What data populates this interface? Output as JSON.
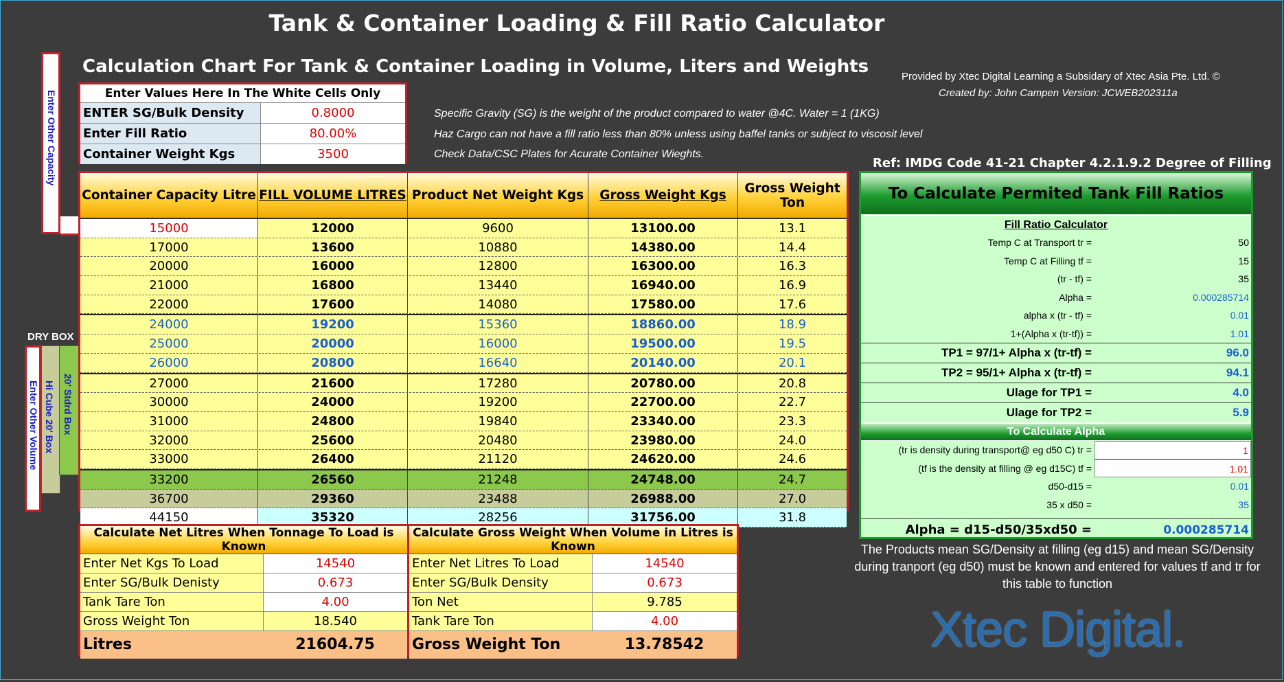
{
  "title": "Tank & Container Loading & Fill Ratio Calculator",
  "subtitle": "Calculation Chart For Tank & Container Loading in Volume, Liters and Weights",
  "provided_by": "Provided by Xtec Digital Learning a Subsidary of Xtec Asia Pte. Ltd. ©",
  "created_by": "Created by: John Campen  Version: JCWEB202311a",
  "notes": [
    "Specific Gravity (SG) is the weight of the product compared to water @4C. Water = 1 (1KG)",
    "Haz Cargo can not have a fill ratio less than 80% unless using baffel tanks or subject to viscosit level",
    "Check Data/CSC Plates for Acurate Container Wieghts."
  ],
  "ref": "Ref: IMDG Code 41-21 Chapter 4.2.1.9.2 Degree of Filling",
  "side_labels": {
    "other_capacity": "Enter Other Capacity",
    "dry_box": "DRY BOX",
    "other_volume": "Enter Other Volume",
    "hi_cube": "Hi Cube 20' Box",
    "stdrd": "20' Stdrd Box"
  },
  "inputs": {
    "header": "Enter Values Here In The White Cells Only",
    "rows": [
      {
        "label": "ENTER SG/Bulk Density",
        "value": "0.8000"
      },
      {
        "label": "Enter Fill Ratio",
        "value": "80.00%"
      },
      {
        "label": "Container Weight Kgs",
        "value": "3500"
      }
    ]
  },
  "main_table": {
    "headers": [
      "Container Capacity Litre",
      "FILL VOLUME LITRES",
      "Product Net Weight Kgs",
      "Gross Weight Kgs",
      "Gross Weight Ton"
    ],
    "rows": [
      [
        "15000",
        "12000",
        "9600",
        "13100.00",
        "13.1"
      ],
      [
        "17000",
        "13600",
        "10880",
        "14380.00",
        "14.4"
      ],
      [
        "20000",
        "16000",
        "12800",
        "16300.00",
        "16.3"
      ],
      [
        "21000",
        "16800",
        "13440",
        "16940.00",
        "16.9"
      ],
      [
        "22000",
        "17600",
        "14080",
        "17580.00",
        "17.6"
      ],
      [
        "24000",
        "19200",
        "15360",
        "18860.00",
        "18.9"
      ],
      [
        "25000",
        "20000",
        "16000",
        "19500.00",
        "19.5"
      ],
      [
        "26000",
        "20800",
        "16640",
        "20140.00",
        "20.1"
      ],
      [
        "27000",
        "21600",
        "17280",
        "20780.00",
        "20.8"
      ],
      [
        "30000",
        "24000",
        "19200",
        "22700.00",
        "22.7"
      ],
      [
        "31000",
        "24800",
        "19840",
        "23340.00",
        "23.3"
      ],
      [
        "32000",
        "25600",
        "20480",
        "23980.00",
        "24.0"
      ],
      [
        "33000",
        "26400",
        "21120",
        "24620.00",
        "24.6"
      ],
      [
        "33200",
        "26560",
        "21248",
        "24748.00",
        "24.7"
      ],
      [
        "36700",
        "29360",
        "23488",
        "26988.00",
        "27.0"
      ],
      [
        "44150",
        "35320",
        "28256",
        "31756.00",
        "31.8"
      ]
    ]
  },
  "net_litres": {
    "header": "Calculate Net Litres When Tonnage To Load is Known",
    "rows": [
      {
        "label": "Enter Net Kgs To Load",
        "value": "14540"
      },
      {
        "label": "Enter SG/Bulk Denisty",
        "value": "0.673"
      },
      {
        "label": "Tank Tare Ton",
        "value": "4.00"
      },
      {
        "label": "Gross Weight Ton",
        "value": "18.540"
      }
    ],
    "total_label": "Litres",
    "total_value": "21604.75"
  },
  "gross_weight": {
    "header": "Calculate Gross Weight When Volume in Litres is Known",
    "rows": [
      {
        "label": "Enter Net Litres To Load",
        "value": "14540"
      },
      {
        "label": "Enter SG/Bulk Density",
        "value": "0.673"
      },
      {
        "label": "Ton Net",
        "value": "9.785"
      },
      {
        "label": "Tank Tare Ton",
        "value": "4.00"
      }
    ],
    "total_label": "Gross Weight Ton",
    "total_value": "13.78542"
  },
  "fill_panel": {
    "header": "To Calculate Permited Tank Fill Ratios",
    "calc_title": "Fill Ratio Calculator",
    "rows": [
      {
        "label": "Temp C at Transport  tr =",
        "value": "50"
      },
      {
        "label": "Temp C at Filling  tf =",
        "value": "15"
      },
      {
        "label": "(tr - tf) =",
        "value": "35"
      },
      {
        "label": "Alpha =",
        "value": "0.000285714"
      },
      {
        "label": "alpha x (tr - tf) =",
        "value": "0.01"
      },
      {
        "label": "1+(Alpha x (tr-tf)) =",
        "value": "1.01"
      }
    ],
    "big_rows": [
      {
        "label": "TP1 =  97/1+ Alpha x (tr-tf) =",
        "value": "96.0"
      },
      {
        "label": "TP2 =  95/1+ Alpha x (tr-tf) =",
        "value": "94.1"
      },
      {
        "label": "Ulage for TP1 =",
        "value": "4.0"
      },
      {
        "label": "Ulage for TP2 =",
        "value": "5.9"
      }
    ],
    "alpha_header": "To Calculate Alpha",
    "alpha_rows": [
      {
        "label": "(tr is density during transport@ eg d50 C)  tr =",
        "value": "1"
      },
      {
        "label": "(tf is the density at filling @ eg d15C)  tf =",
        "value": "1.01"
      },
      {
        "label": "d50-d15 =",
        "value": "0.01"
      },
      {
        "label": "35 x d50 =",
        "value": "35"
      }
    ],
    "alpha_label": "Alpha  =  d15-d50/35xd50   =",
    "alpha_value": "0.000285714"
  },
  "description": "The Products mean SG/Density at filling (eg d15)  and mean SG/Density during tranport (eg d50) must be known and entered for values tf and tr for this table to function",
  "logo": "Xtec Digital.",
  "colors": {
    "background": "#3c3c3c",
    "table_yellow": "#ffff99",
    "input_red": "#e00000",
    "highlight_blue": "#1a5fd0",
    "panel_green": "#ccffcc",
    "row_green": "#8cc84b",
    "row_khaki": "#c6cc9a",
    "row_cyan": "#ccffff"
  }
}
